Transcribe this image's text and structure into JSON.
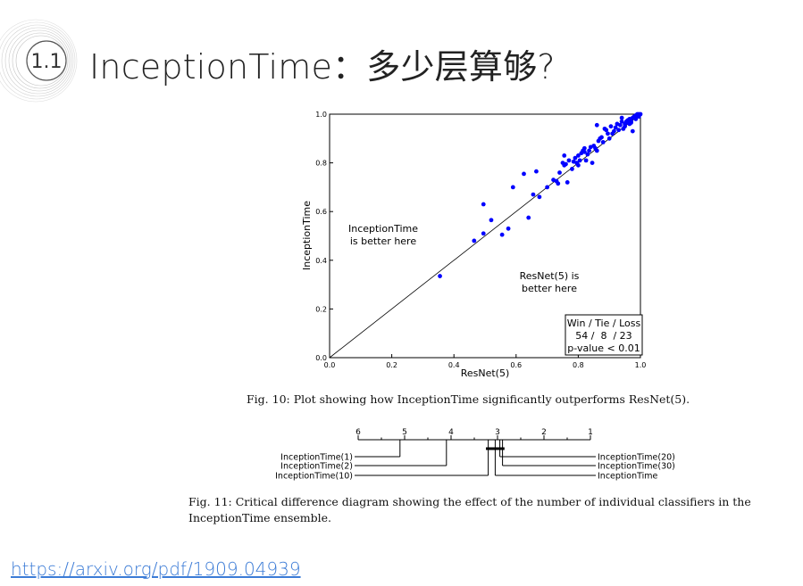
{
  "slide": {
    "section_number": "1.1",
    "title": "InceptionTime：多少层算够?",
    "source_link": "https://arxiv.org/pdf/1909.04939"
  },
  "fig10": {
    "caption": "Fig. 10: Plot showing how InceptionTime significantly outperforms ResNet(5).",
    "annotation_upper": [
      "InceptionTime",
      "is better here"
    ],
    "annotation_lower": [
      "ResNet(5) is",
      "better here"
    ],
    "stats_box": [
      "Win / Tie / Loss",
      "54 /  8  / 23",
      "p-value < 0.01"
    ]
  },
  "fig11": {
    "caption": "Fig. 11: Critical difference diagram showing the effect of the number of individual classifiers in the InceptionTime ensemble.",
    "axis_ticks": [
      6,
      5,
      4,
      3,
      2,
      1
    ],
    "left_labels": [
      "InceptionTime(1)",
      "InceptionTime(2)",
      "InceptionTime(10)"
    ],
    "right_labels": [
      "InceptionTime(20)",
      "InceptionTime(30)",
      "InceptionTime"
    ],
    "left_ranks": [
      5.1,
      4.1,
      3.2
    ],
    "right_ranks": [
      2.95,
      2.95,
      3.05
    ]
  },
  "chart_data": {
    "type": "scatter",
    "xlabel": "ResNet(5)",
    "ylabel": "InceptionTime",
    "xlim": [
      0,
      1
    ],
    "ylim": [
      0,
      1
    ],
    "xticks": [
      0.0,
      0.2,
      0.4,
      0.6,
      0.8,
      1.0
    ],
    "yticks": [
      0.0,
      0.2,
      0.4,
      0.6,
      0.8,
      1.0
    ],
    "xtick_labels": [
      "0.0",
      "0.2",
      "0.4",
      "0.6",
      "0.8",
      "1.0"
    ],
    "ytick_labels": [
      "0.0",
      "0.2",
      "0.4",
      "0.6",
      "0.8",
      "1.0"
    ],
    "diagonal": true,
    "point_color": "#0000ff",
    "x": [
      0.355,
      0.465,
      0.495,
      0.495,
      0.52,
      0.555,
      0.575,
      0.59,
      0.625,
      0.64,
      0.655,
      0.665,
      0.675,
      0.7,
      0.72,
      0.73,
      0.735,
      0.74,
      0.75,
      0.755,
      0.755,
      0.76,
      0.765,
      0.77,
      0.78,
      0.785,
      0.79,
      0.795,
      0.8,
      0.8,
      0.805,
      0.81,
      0.815,
      0.82,
      0.82,
      0.825,
      0.83,
      0.835,
      0.84,
      0.845,
      0.85,
      0.855,
      0.86,
      0.86,
      0.865,
      0.87,
      0.875,
      0.88,
      0.885,
      0.89,
      0.895,
      0.9,
      0.905,
      0.91,
      0.915,
      0.92,
      0.925,
      0.93,
      0.935,
      0.94,
      0.945,
      0.95,
      0.955,
      0.96,
      0.965,
      0.97,
      0.975,
      0.98,
      0.985,
      0.99,
      0.995,
      1.0,
      0.94,
      0.96,
      0.97,
      0.98,
      0.99,
      0.95,
      0.975,
      0.995,
      0.985,
      0.965,
      0.955
    ],
    "y": [
      0.335,
      0.48,
      0.51,
      0.63,
      0.565,
      0.505,
      0.53,
      0.7,
      0.755,
      0.575,
      0.67,
      0.765,
      0.66,
      0.7,
      0.73,
      0.725,
      0.715,
      0.76,
      0.8,
      0.79,
      0.83,
      0.795,
      0.72,
      0.81,
      0.775,
      0.805,
      0.82,
      0.8,
      0.79,
      0.83,
      0.81,
      0.84,
      0.85,
      0.86,
      0.845,
      0.81,
      0.835,
      0.85,
      0.865,
      0.8,
      0.87,
      0.86,
      0.85,
      0.955,
      0.89,
      0.9,
      0.905,
      0.885,
      0.94,
      0.935,
      0.92,
      0.9,
      0.95,
      0.92,
      0.93,
      0.945,
      0.96,
      0.935,
      0.955,
      0.97,
      0.94,
      0.96,
      0.965,
      0.975,
      0.98,
      0.97,
      0.985,
      0.99,
      0.995,
      1.0,
      0.99,
      1.0,
      0.985,
      0.975,
      0.965,
      0.99,
      0.995,
      0.95,
      0.93,
      1.0,
      0.98,
      0.96,
      0.97
    ]
  }
}
